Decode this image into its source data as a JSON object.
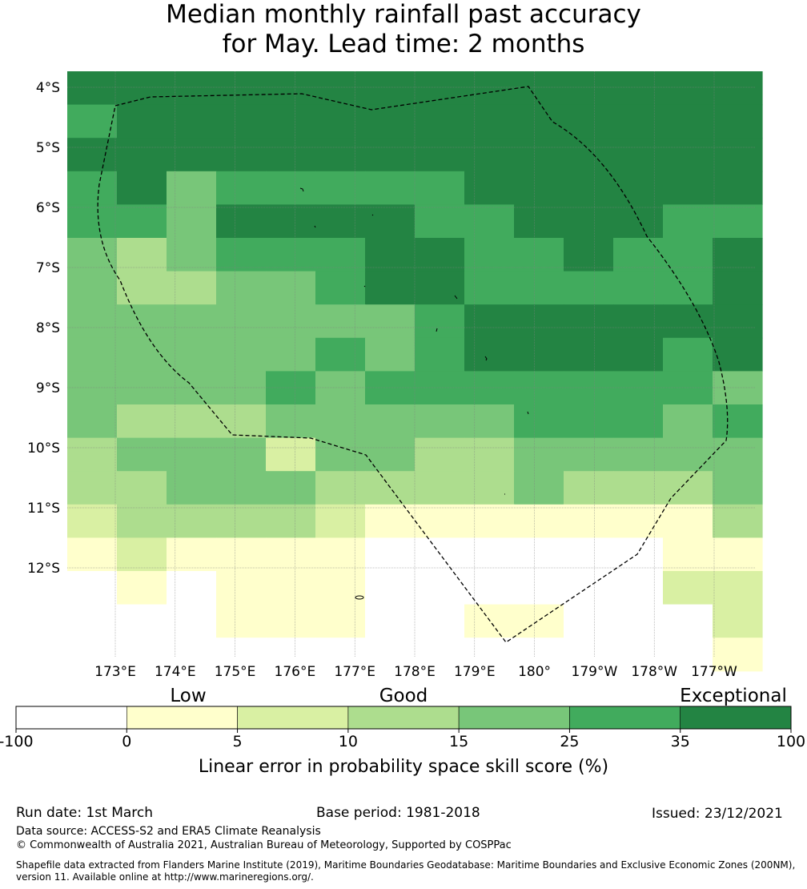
{
  "title": {
    "line1": "Median monthly rainfall past accuracy",
    "line2": "for May. Lead time: 2 months"
  },
  "map": {
    "grid_columns": 14,
    "grid_rows": 18,
    "category_colors": [
      "#ffffff",
      "#ffffcc",
      "#d9f0a3",
      "#addd8e",
      "#78c679",
      "#41ab5d",
      "#238443"
    ],
    "cells": [
      "66666666666666",
      "56666666666666",
      "66666666666666",
      "56455555666666",
      "55466665566655",
      "43455566556556",
      "43344566555556",
      "44444445666666",
      "44444545666656",
      "44445455555554",
      "43334444455545",
      "34442443344444",
      "33444333343334",
      "23333211111113",
      "12111100000011",
      "01011100000022",
      "00011100110002",
      "00000000000001"
    ],
    "y_ticks": [
      "4°S",
      "5°S",
      "6°S",
      "7°S",
      "8°S",
      "9°S",
      "10°S",
      "11°S",
      "12°S"
    ],
    "x_ticks": [
      "173°E",
      "174°E",
      "175°E",
      "176°E",
      "177°E",
      "178°E",
      "179°E",
      "180°",
      "179°W",
      "178°W",
      "177°W"
    ]
  },
  "colorbar": {
    "categories": [
      "Low",
      "Good",
      "Exceptional"
    ],
    "ticks": [
      "-100",
      "0",
      "5",
      "10",
      "15",
      "25",
      "35",
      "100"
    ],
    "label": "Linear error in probability space skill score (%)"
  },
  "footer": {
    "run_date": "Run date: 1st March",
    "base_period": "Base period: 1981-2018",
    "issued": "Issued: 23/12/2021",
    "data_source": "Data source: ACCESS-S2 and ERA5 Climate Reanalysis",
    "copyright": "© Commonwealth of Australia 2021, Australian Bureau of Meteorology, Supported by COSPPac",
    "shapefile": "Shapefile data extracted from Flanders Marine Institute (2019), Maritime Boundaries Geodatabase: Maritime Boundaries and Exclusive Economic Zones (200NM), version 11. Available online at http://www.marineregions.org/."
  }
}
